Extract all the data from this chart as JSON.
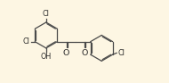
{
  "bg_color": "#fdf6e3",
  "line_color": "#4a4a4a",
  "text_color": "#2a2a2a",
  "lw": 0.9,
  "fs": 5.8,
  "figsize": [
    1.9,
    0.93
  ],
  "dpi": 100,
  "xlim": [
    0.0,
    10.0
  ],
  "ylim": [
    0.0,
    5.2
  ]
}
